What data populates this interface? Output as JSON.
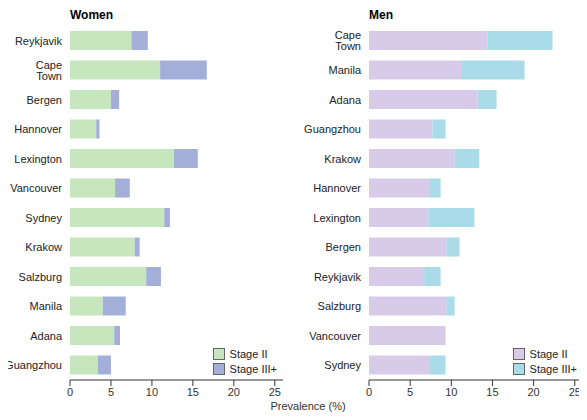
{
  "chart_data": [
    {
      "type": "bar",
      "title": "Women",
      "orientation": "horizontal",
      "stacked": true,
      "legend": "lower right",
      "categories": [
        "Reykjavik",
        "Cape Town",
        "Bergen",
        "Hannover",
        "Lexington",
        "Vancouver",
        "Sydney",
        "Krakow",
        "Salzburg",
        "Manila",
        "Adana",
        "Guangzhou"
      ],
      "series": [
        {
          "name": "Stage II",
          "color": "#c6e6bd",
          "values": [
            7.5,
            11.0,
            5.0,
            3.2,
            12.7,
            5.5,
            11.5,
            7.9,
            9.3,
            4.0,
            5.4,
            3.4
          ]
        },
        {
          "name": "Stage III+",
          "color": "#a3afd9",
          "values": [
            2.0,
            5.7,
            1.0,
            0.4,
            2.9,
            1.8,
            0.7,
            0.6,
            1.8,
            2.8,
            0.7,
            1.6
          ]
        }
      ],
      "xlim": [
        0,
        26
      ],
      "xticks": [
        0,
        5,
        10,
        15,
        20,
        25
      ]
    },
    {
      "type": "bar",
      "title": "Men",
      "orientation": "horizontal",
      "stacked": true,
      "legend": "lower right",
      "categories": [
        "Cape Town",
        "Manila",
        "Adana",
        "Guangzhou",
        "Krakow",
        "Hannover",
        "Lexington",
        "Bergen",
        "Reykjavik",
        "Salzburg",
        "Vancouver",
        "Sydney"
      ],
      "series": [
        {
          "name": "Stage II",
          "color": "#d7cbe9",
          "values": [
            14.4,
            11.3,
            13.2,
            7.7,
            10.4,
            7.4,
            7.2,
            9.4,
            6.7,
            9.4,
            9.3,
            7.3
          ]
        },
        {
          "name": "Stage III+",
          "color": "#a9dbe8",
          "values": [
            7.9,
            7.6,
            2.3,
            1.6,
            3.0,
            1.3,
            5.6,
            1.6,
            2.0,
            1.0,
            0,
            2.0
          ]
        }
      ],
      "xlim": [
        0,
        26
      ],
      "xticks": [
        0,
        5,
        10,
        15,
        20,
        25
      ]
    }
  ],
  "xlabel": "Prevalence (%)"
}
